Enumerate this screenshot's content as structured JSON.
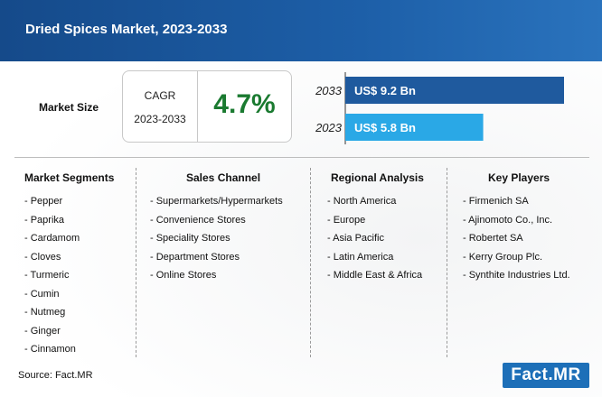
{
  "header": {
    "title": "Dried Spices Market, 2023-2033"
  },
  "market_size": {
    "label": "Market Size",
    "cagr_label": "CAGR",
    "cagr_period": "2023-2033",
    "cagr_value": "4.7%"
  },
  "chart_data": {
    "type": "bar",
    "orientation": "horizontal",
    "categories": [
      "2033",
      "2023"
    ],
    "values": [
      9.2,
      5.8
    ],
    "value_labels": [
      "US$ 9.2 Bn",
      "US$ 5.8 Bn"
    ],
    "unit": "US$ Bn",
    "colors": [
      "#1f5a9e",
      "#2aa8e6"
    ],
    "title": "",
    "xlabel": "",
    "ylabel": "",
    "grid": false
  },
  "segments": {
    "market_segments": {
      "title": "Market Segments",
      "items": [
        "- Pepper",
        "- Paprika",
        "- Cardamom",
        "- Cloves",
        "- Turmeric",
        "- Cumin",
        "- Nutmeg",
        "- Ginger",
        "- Cinnamon"
      ]
    },
    "sales_channel": {
      "title": "Sales Channel",
      "items": [
        "- Supermarkets/Hypermarkets",
        "- Convenience Stores",
        "- Speciality Stores",
        "- Department Stores",
        "- Online Stores"
      ]
    },
    "regional_analysis": {
      "title": "Regional Analysis",
      "items": [
        "- North America",
        "- Europe",
        "- Asia Pacific",
        "- Latin America",
        "- Middle East & Africa"
      ]
    },
    "key_players": {
      "title": "Key Players",
      "items": [
        "- Firmenich SA",
        "- Ajinomoto Co., Inc.",
        "- Robertet SA",
        "- Kerry Group Plc.",
        "- Synthite Industries Ltd."
      ]
    }
  },
  "footer": {
    "source": "Source: Fact.MR",
    "logo": "Fact.MR"
  }
}
